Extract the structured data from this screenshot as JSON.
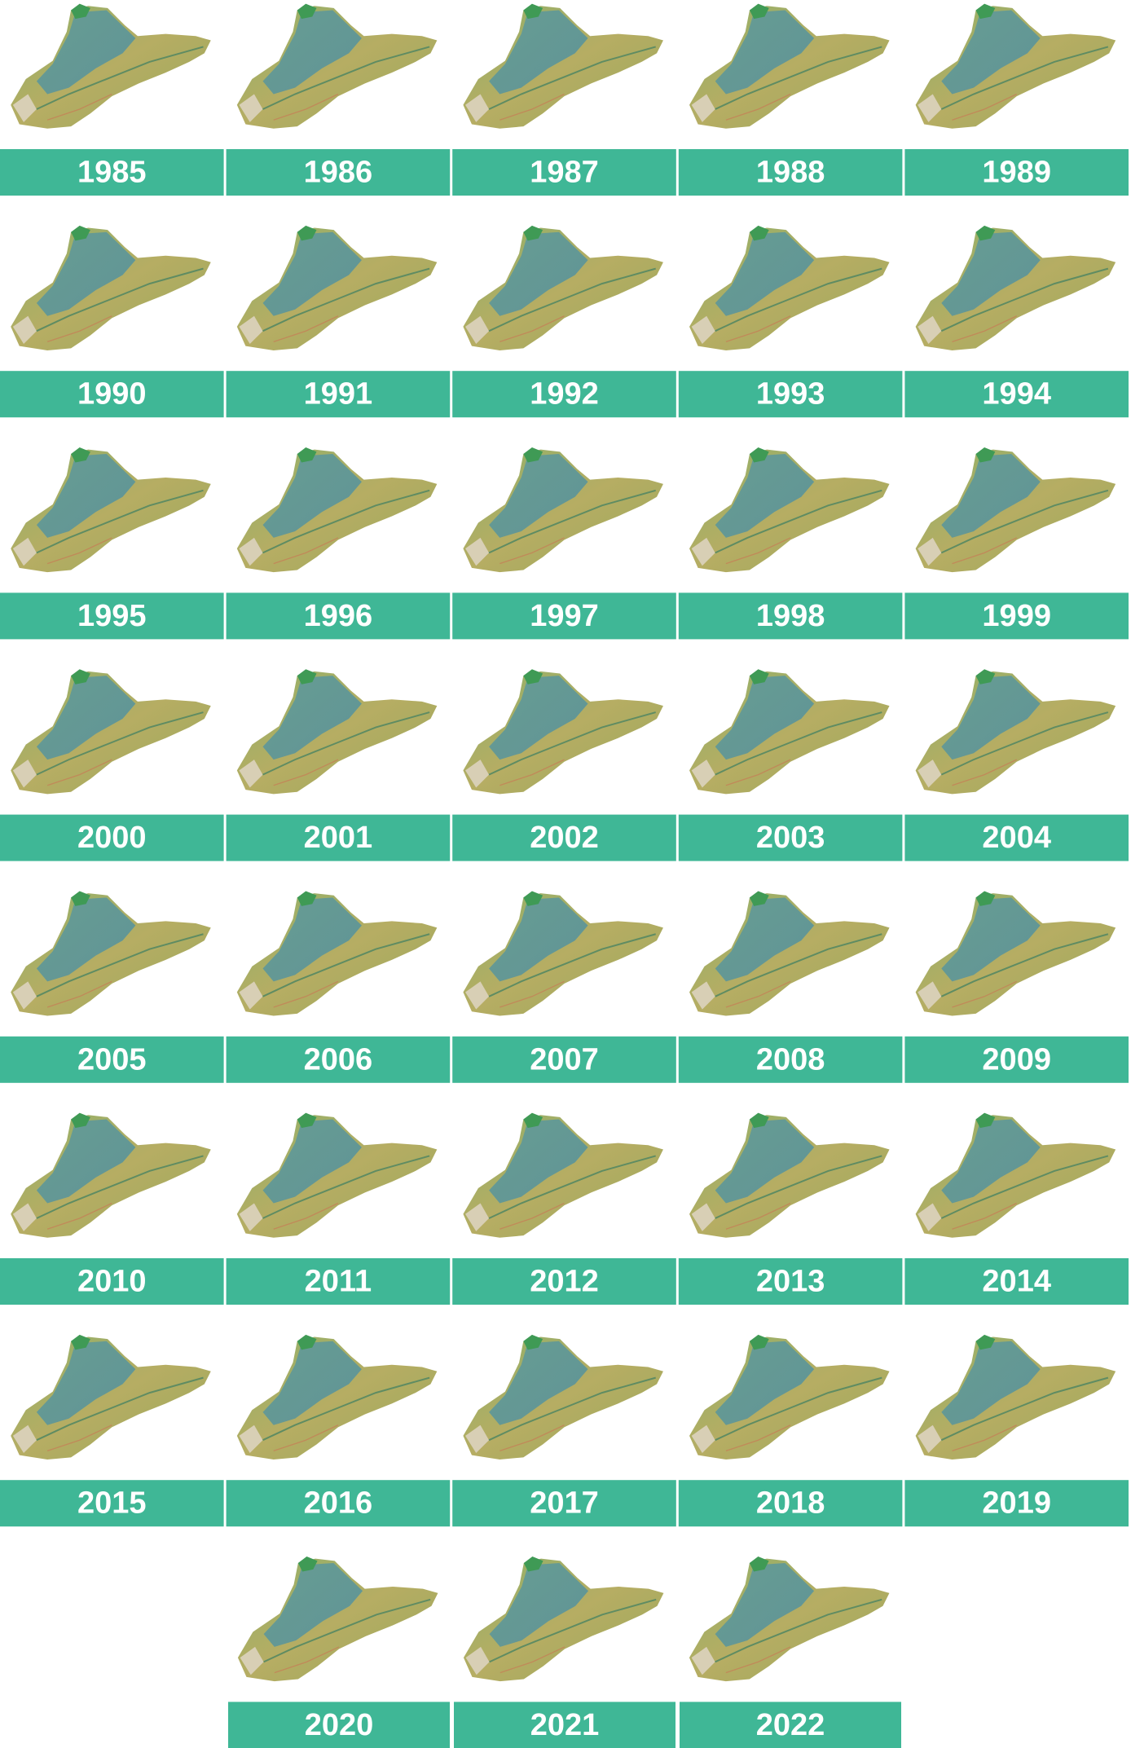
{
  "years": [
    "1985",
    "1986",
    "1987",
    "1988",
    "1989",
    "1990",
    "1991",
    "1992",
    "1993",
    "1994",
    "1995",
    "1996",
    "1997",
    "1998",
    "1999",
    "2000",
    "2001",
    "2002",
    "2003",
    "2004",
    "2005",
    "2006",
    "2007",
    "2008",
    "2009",
    "2010",
    "2011",
    "2012",
    "2013",
    "2014",
    "2015",
    "2016",
    "2017",
    "2018",
    "2019",
    "2020",
    "2021",
    "2022"
  ]
}
